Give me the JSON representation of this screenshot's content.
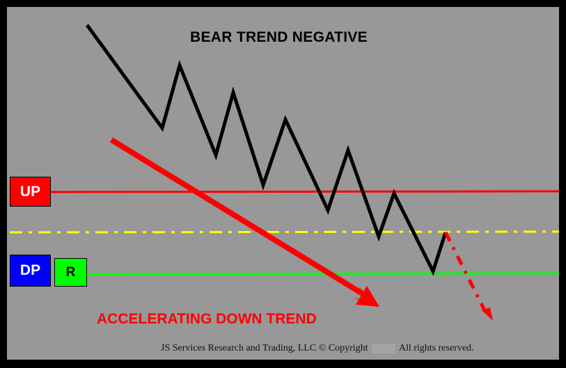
{
  "title": "BEAR TREND NEGATIVE",
  "labels": {
    "up": "UP",
    "dp": "DP",
    "r": "R"
  },
  "annotation": "ACCELERATING DOWN TREND",
  "footer": {
    "left": "JS Services Research and Trading, LLC © Copyright",
    "right": "All rights reserved."
  },
  "colors": {
    "background": "#989898",
    "frame": "#000000",
    "price_line": "#000000",
    "up_line": "#ff0000",
    "midline": "#ffff00",
    "dp_line": "#00ff00",
    "trend_arrow": "#ff0000",
    "projection": "#ff0000"
  }
}
